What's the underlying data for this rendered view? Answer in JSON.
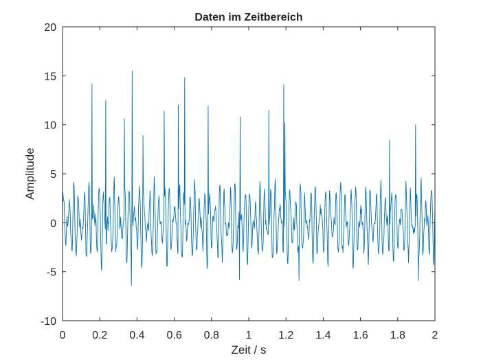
{
  "chart_data": {
    "type": "line",
    "title": "Daten im Zeitbereich",
    "xlabel": "Zeit / s",
    "ylabel": "Amplitude",
    "xlim": [
      0,
      2
    ],
    "ylim": [
      -10,
      20
    ],
    "xticks": [
      0,
      0.2,
      0.4,
      0.6,
      0.8,
      1,
      1.2,
      1.4,
      1.6,
      1.8,
      2
    ],
    "xtick_labels": [
      "0",
      "0.2",
      "0.4",
      "0.6",
      "0.8",
      "1",
      "1.2",
      "1.4",
      "1.6",
      "1.8",
      "2"
    ],
    "yticks": [
      -10,
      -5,
      0,
      5,
      10,
      15,
      20
    ],
    "ytick_labels": [
      "-10",
      "-5",
      "0",
      "5",
      "10",
      "15",
      "20"
    ],
    "grid": false,
    "box": true,
    "series": [
      {
        "color": "#0072BD",
        "sample_rate_hz": 500,
        "signal": "oscillation about 0 with amplitude roughly ±4.5 plus isolated spikes",
        "peaks": [
          {
            "x": 0.158,
            "y": 14.2
          },
          {
            "x": 0.232,
            "y": 12.5
          },
          {
            "x": 0.332,
            "y": 10.6
          },
          {
            "x": 0.373,
            "y": 15.5
          },
          {
            "x": 0.432,
            "y": 8.9
          },
          {
            "x": 0.546,
            "y": 11.4
          },
          {
            "x": 0.622,
            "y": 12.0
          },
          {
            "x": 0.655,
            "y": 14.8
          },
          {
            "x": 0.782,
            "y": 11.9
          },
          {
            "x": 0.953,
            "y": 10.8
          },
          {
            "x": 1.108,
            "y": 11.5
          },
          {
            "x": 1.188,
            "y": 14.1
          },
          {
            "x": 1.193,
            "y": 10.2
          },
          {
            "x": 1.755,
            "y": 8.4
          },
          {
            "x": 1.895,
            "y": 10.0
          }
        ],
        "troughs": [
          {
            "x": 0.37,
            "y": -6.4
          },
          {
            "x": 0.95,
            "y": -5.8
          },
          {
            "x": 1.27,
            "y": -5.9
          },
          {
            "x": 1.91,
            "y": -5.9
          }
        ]
      }
    ]
  }
}
